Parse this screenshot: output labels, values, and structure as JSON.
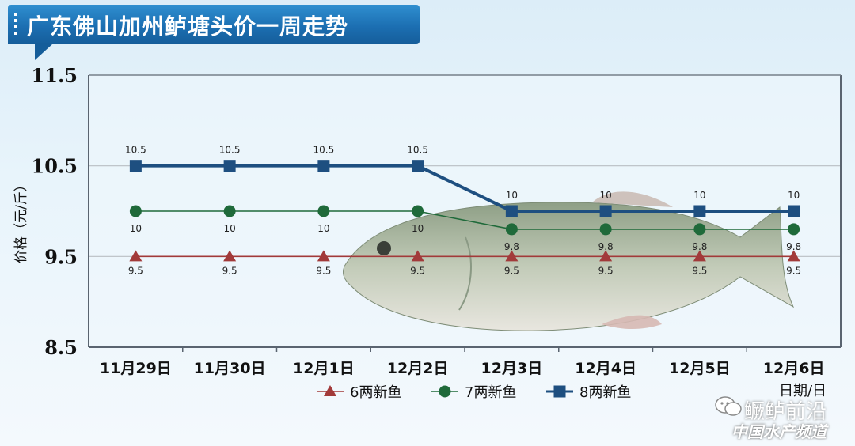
{
  "header": {
    "title": "广东佛山加州鲈塘头价一周走势"
  },
  "chart_data": {
    "type": "line",
    "title": "广东佛山加州鲈塘头价一周走势",
    "xlabel": "日期/日",
    "ylabel": "价格（元/斤）",
    "ylim": [
      8.5,
      11.5
    ],
    "yticks": [
      "8.5",
      "9.5",
      "10.5",
      "11.5"
    ],
    "grid": true,
    "legend_position": "bottom",
    "categories": [
      "11月29日",
      "11月30日",
      "12月1日",
      "12月2日",
      "12月3日",
      "12月4日",
      "12月5日",
      "12月6日"
    ],
    "series": [
      {
        "name": "6两新鱼",
        "color": "#a23a3a",
        "marker": "triangle",
        "values": [
          9.5,
          9.5,
          9.5,
          9.5,
          9.5,
          9.5,
          9.5,
          9.5
        ],
        "labels": [
          "9.5",
          "9.5",
          "9.5",
          "9.5",
          "9.5",
          "9.5",
          "9.5",
          "9.5"
        ]
      },
      {
        "name": "7两新鱼",
        "color": "#1f6a3a",
        "marker": "circle",
        "values": [
          10,
          10,
          10,
          10,
          9.8,
          9.8,
          9.8,
          9.8
        ],
        "labels": [
          "10",
          "10",
          "10",
          "10",
          "9.8",
          "9.8",
          "9.8",
          "9.8"
        ]
      },
      {
        "name": "8两新鱼",
        "color": "#1e4f80",
        "marker": "square",
        "values": [
          10.5,
          10.5,
          10.5,
          10.5,
          10,
          10,
          10,
          10
        ],
        "labels": [
          "10.5",
          "10.5",
          "10.5",
          "10.5",
          "10",
          "10",
          "10",
          "10"
        ]
      }
    ]
  },
  "watermark": {
    "name": "鳜鲈前沿",
    "sub": "中国水产频道",
    "icon": "wechat-icon"
  }
}
